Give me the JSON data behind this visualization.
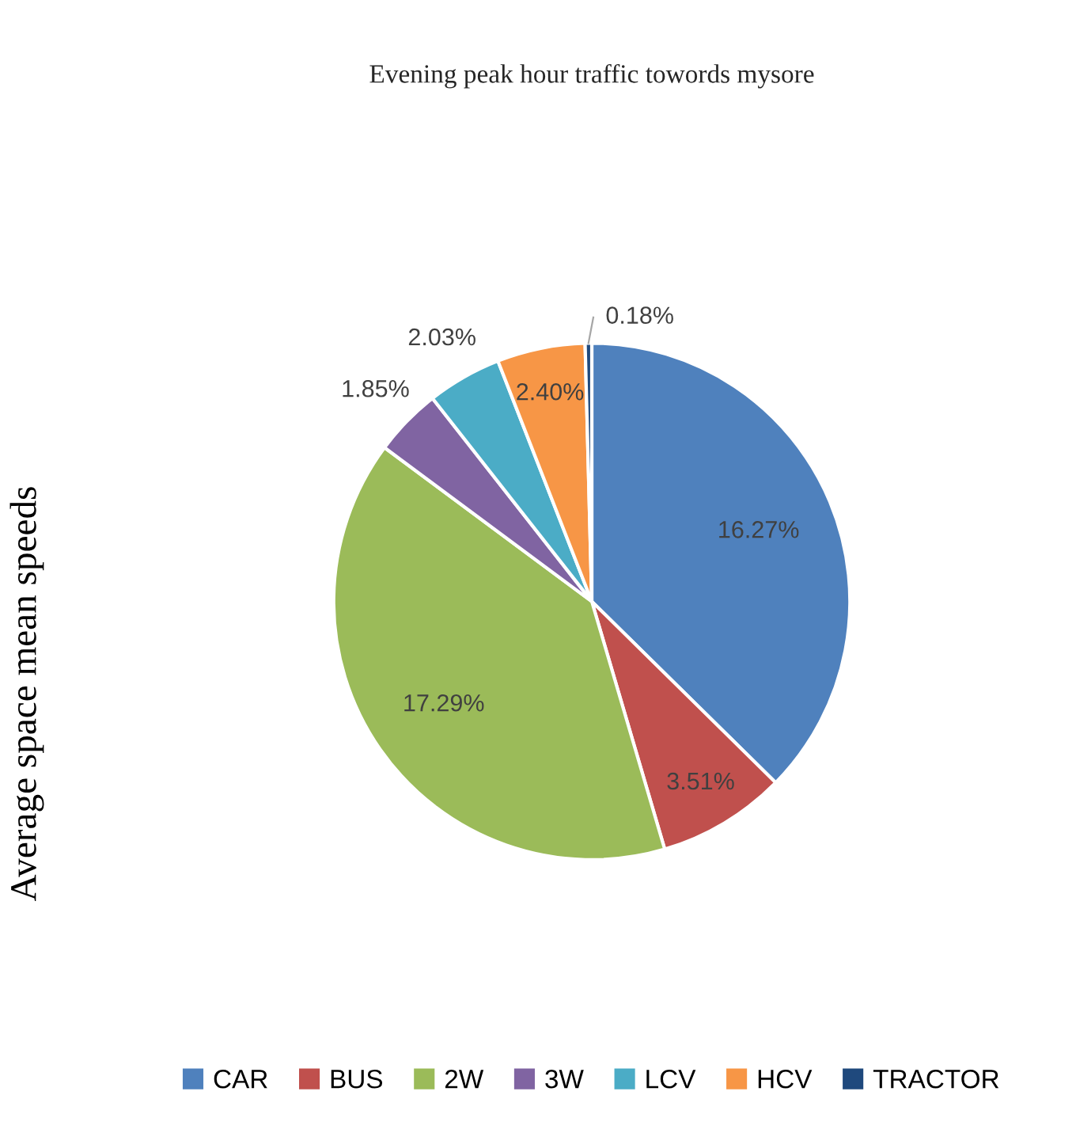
{
  "chart_data": {
    "type": "pie",
    "title": "Evening peak hour traffic towords mysore",
    "ylabel": "Average space mean speeds",
    "categories": [
      "CAR",
      "BUS",
      "2W",
      "3W",
      "LCV",
      "HCV",
      "TRACTOR"
    ],
    "values": [
      16.27,
      3.51,
      17.29,
      1.85,
      2.03,
      2.4,
      0.18
    ],
    "value_labels": [
      "16.27%",
      "3.51%",
      "17.29%",
      "1.85%",
      "2.03%",
      "2.40%",
      "0.18%"
    ],
    "colors": [
      "#4f81bd",
      "#c0504d",
      "#9bbb59",
      "#8064a2",
      "#4bacc6",
      "#f79646",
      "#1f497d"
    ],
    "legend": "bottom"
  }
}
